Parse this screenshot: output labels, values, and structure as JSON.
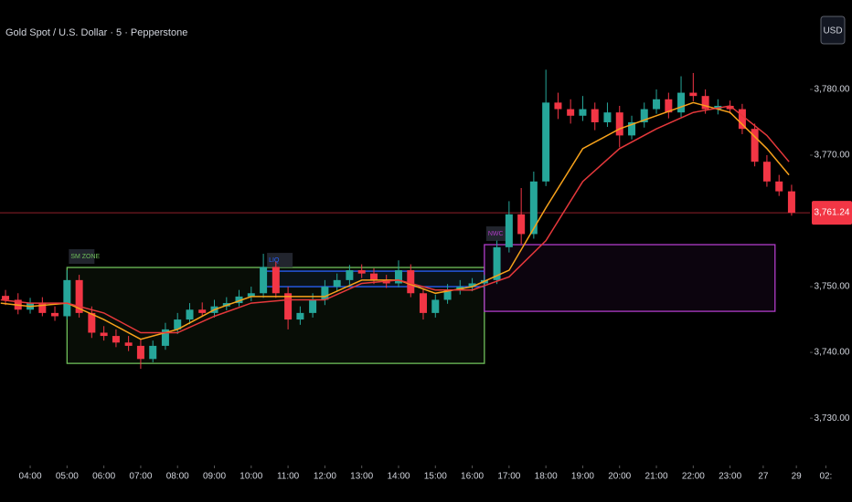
{
  "chart_data": {
    "type": "candlestick",
    "title": "Gold Spot / U.S. Dollar · 5 · Pepperstone",
    "currency_button": "USD",
    "x": [
      3.33,
      3.67,
      4,
      4.33,
      4.67,
      5,
      5.33,
      5.67,
      6,
      6.33,
      6.67,
      7,
      7.33,
      7.67,
      8,
      8.33,
      8.67,
      9,
      9.33,
      9.67,
      10,
      10.33,
      10.67,
      11,
      11.33,
      11.67,
      12,
      12.33,
      12.67,
      13,
      13.33,
      13.67,
      14,
      14.33,
      14.67,
      15,
      15.33,
      15.67,
      16,
      16.33,
      16.67,
      17,
      17.33,
      17.67,
      18,
      18.33,
      18.67,
      19,
      19.33,
      19.67,
      20,
      20.33,
      20.67,
      21,
      21.33,
      21.67,
      22,
      22.33,
      22.67,
      23,
      23.33,
      23.67,
      24,
      24.33,
      24.67
    ],
    "open": [
      3748.6,
      3748,
      3746.5,
      3747.5,
      3746,
      3745.5,
      3751,
      3746,
      3743,
      3742.5,
      3741.5,
      3741,
      3739,
      3741,
      3743.5,
      3745,
      3746.5,
      3746,
      3747,
      3747.5,
      3748.5,
      3749,
      3753,
      3749,
      3745,
      3746,
      3748,
      3750,
      3751,
      3752.5,
      3752,
      3751,
      3750.5,
      3752.5,
      3749,
      3746,
      3748,
      3749.5,
      3750,
      3750.5,
      3751,
      3756,
      3761,
      3758,
      3766,
      3778,
      3777,
      3776,
      3777,
      3775,
      3776.5,
      3773,
      3775,
      3777,
      3778.5,
      3776.5,
      3779.5,
      3779,
      3777,
      3777.5,
      3777,
      3774,
      3769,
      3766,
      3764.5
    ],
    "high": [
      3749.5,
      3749,
      3748.3,
      3748.4,
      3747,
      3752.5,
      3751.8,
      3747,
      3744,
      3743.5,
      3742.5,
      3742,
      3741.8,
      3744.5,
      3746,
      3747.5,
      3747.6,
      3748,
      3748.4,
      3749.5,
      3750,
      3755,
      3753.8,
      3750,
      3747,
      3749,
      3751,
      3752,
      3753.3,
      3753.4,
      3752.8,
      3751.8,
      3754,
      3753.4,
      3749.8,
      3748.8,
      3750.4,
      3751,
      3751.3,
      3751.8,
      3757,
      3763,
      3765,
      3767.5,
      3783,
      3779.5,
      3778.5,
      3779,
      3778,
      3778,
      3777.5,
      3776,
      3778,
      3780,
      3779.5,
      3782,
      3782.5,
      3780,
      3778.5,
      3778.3,
      3777.8,
      3774.8,
      3770,
      3767,
      3765.5
    ],
    "low": [
      3747.2,
      3745.8,
      3745.9,
      3745.5,
      3744.8,
      3745,
      3745.3,
      3742.2,
      3741.8,
      3740.8,
      3740.2,
      3737.5,
      3738.5,
      3740.4,
      3742.8,
      3744.3,
      3745.4,
      3745.3,
      3746.4,
      3747,
      3747.8,
      3748.3,
      3748.3,
      3743.5,
      3744.2,
      3745.3,
      3747.2,
      3749.3,
      3750.3,
      3751.3,
      3750.4,
      3749.8,
      3749.9,
      3748.4,
      3745,
      3745.3,
      3747.4,
      3748.8,
      3749.3,
      3749.8,
      3750.4,
      3755.2,
      3756.5,
      3757.3,
      3765.3,
      3775.5,
      3774.8,
      3775.2,
      3773.8,
      3774.3,
      3771.2,
      3772.4,
      3774.2,
      3776.3,
      3775.6,
      3775.8,
      3778.2,
      3776.3,
      3776.2,
      3776.3,
      3773.2,
      3768.3,
      3765.2,
      3763.8,
      3760.8
    ],
    "close": [
      3748,
      3746.5,
      3747.5,
      3746,
      3745.5,
      3751,
      3746,
      3743,
      3742.5,
      3741.5,
      3741,
      3739,
      3741,
      3743.5,
      3745,
      3746.5,
      3746,
      3747,
      3747.5,
      3748.5,
      3749,
      3753,
      3749,
      3745,
      3746,
      3748,
      3750,
      3751,
      3752.5,
      3752,
      3751,
      3750.5,
      3752.5,
      3749,
      3746,
      3748,
      3749.5,
      3750,
      3750.5,
      3751,
      3756,
      3761,
      3758,
      3766,
      3778,
      3777,
      3776,
      3777,
      3775,
      3776.5,
      3773,
      3775,
      3777,
      3778.5,
      3776.5,
      3779.5,
      3779,
      3777,
      3777.5,
      3777,
      3774,
      3769,
      3766,
      3764.5,
      3761.24
    ],
    "up_color": "#26a69a",
    "down_color": "#f23645",
    "overlays": [
      {
        "color": "#f7a21b",
        "x": [
          3.2,
          4,
          5,
          6,
          7,
          8,
          9,
          10,
          11,
          12,
          13,
          14,
          15,
          16,
          17,
          18,
          19,
          20,
          21,
          22,
          23,
          24,
          24.6
        ],
        "values": [
          3747.5,
          3747,
          3747.5,
          3745,
          3742,
          3743.5,
          3746.5,
          3748.5,
          3748.5,
          3748.5,
          3751,
          3751,
          3749,
          3750,
          3752.5,
          3762,
          3771,
          3774,
          3776,
          3778,
          3776.5,
          3771,
          3767
        ]
      },
      {
        "color": "#e5383b",
        "x": [
          3.2,
          4,
          5,
          6,
          7,
          8,
          9,
          10,
          11,
          12,
          13,
          14,
          15,
          16,
          17,
          18,
          19,
          20,
          21,
          22,
          23,
          24,
          24.6
        ],
        "values": [
          3748,
          3747.5,
          3747.5,
          3746,
          3743,
          3743,
          3745.5,
          3747.5,
          3748,
          3748,
          3750.5,
          3751,
          3749.5,
          3749.5,
          3751.5,
          3757,
          3766,
          3771,
          3774,
          3776.5,
          3777.5,
          3773,
          3769
        ]
      }
    ],
    "zones": [
      {
        "label": "SM ZONE",
        "x": [
          5.0,
          16.33
        ],
        "y": [
          3738.33,
          3752.92
        ],
        "color": "#6fbf5a"
      },
      {
        "label": "LIQ",
        "x": [
          10.38,
          16.33
        ],
        "y": [
          3750.0,
          3752.36
        ],
        "color": "#2962ff"
      },
      {
        "label": "NWC",
        "x": [
          16.33,
          24.22
        ],
        "y": [
          3746.25,
          3756.39
        ],
        "color": "#b03cc8"
      }
    ],
    "last_price": {
      "value": 3761.24,
      "label": "3,761.24"
    },
    "xlim": [
      3.18,
      26.31
    ],
    "ylim": [
      3722.8,
      3793.6
    ],
    "yticks": [
      {
        "value": 3730,
        "label": "3,730.00"
      },
      {
        "value": 3740,
        "label": "3,740.00"
      },
      {
        "value": 3750,
        "label": "3,750.00"
      },
      {
        "value": 3770,
        "label": "3,770.00"
      },
      {
        "value": 3780,
        "label": "3,780.00"
      }
    ],
    "xticks": [
      {
        "value": 4,
        "label": "04:00"
      },
      {
        "value": 5,
        "label": "05:00"
      },
      {
        "value": 6,
        "label": "06:00"
      },
      {
        "value": 7,
        "label": "07:00"
      },
      {
        "value": 8,
        "label": "08:00"
      },
      {
        "value": 9,
        "label": "09:00"
      },
      {
        "value": 10,
        "label": "10:00"
      },
      {
        "value": 11,
        "label": "11:00"
      },
      {
        "value": 12,
        "label": "12:00"
      },
      {
        "value": 13,
        "label": "13:00"
      },
      {
        "value": 14,
        "label": "14:00"
      },
      {
        "value": 15,
        "label": "15:00"
      },
      {
        "value": 16,
        "label": "16:00"
      },
      {
        "value": 17,
        "label": "17:00"
      },
      {
        "value": 18,
        "label": "18:00"
      },
      {
        "value": 19,
        "label": "19:00"
      },
      {
        "value": 20,
        "label": "20:00"
      },
      {
        "value": 21,
        "label": "21:00"
      },
      {
        "value": 22,
        "label": "22:00"
      },
      {
        "value": 23,
        "label": "23:00"
      },
      {
        "value": 23.9,
        "label": "27"
      },
      {
        "value": 24.8,
        "label": "29"
      },
      {
        "value": 25.6,
        "label": "02:"
      }
    ]
  }
}
